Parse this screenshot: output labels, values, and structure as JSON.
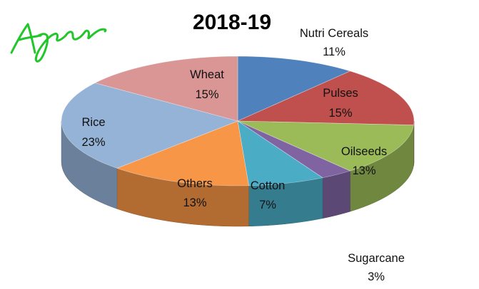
{
  "chart_data": {
    "type": "pie",
    "title": "2018-19",
    "slices": [
      {
        "label": "Nutri Cereals",
        "value": 11,
        "value_label": "11%",
        "color": "#4f81bd"
      },
      {
        "label": "Pulses",
        "value": 15,
        "value_label": "15%",
        "color": "#c0504d"
      },
      {
        "label": "Oilseeds",
        "value": 13,
        "value_label": "13%",
        "color": "#9bbb59"
      },
      {
        "label": "Sugarcane",
        "value": 3,
        "value_label": "3%",
        "color": "#8064a2"
      },
      {
        "label": "Cotton",
        "value": 7,
        "value_label": "7%",
        "color": "#4bacc6"
      },
      {
        "label": "Others",
        "value": 13,
        "value_label": "13%",
        "color": "#f79646"
      },
      {
        "label": "Rice",
        "value": 23,
        "value_label": "23%",
        "color": "#95b3d7"
      },
      {
        "label": "Wheat",
        "value": 15,
        "value_label": "15%",
        "color": "#d99694"
      }
    ],
    "style": "3d-pie",
    "legend": "none"
  },
  "annotation": {
    "kind": "handwritten-signature",
    "text": "Agrep",
    "color": "#22c52a"
  }
}
